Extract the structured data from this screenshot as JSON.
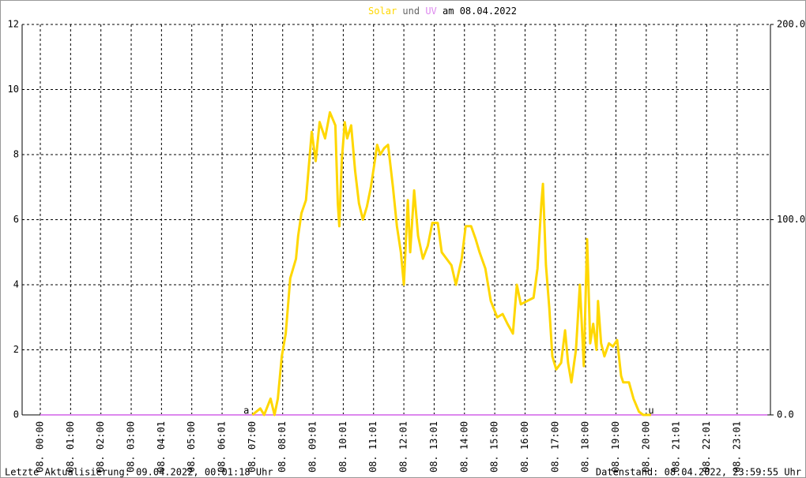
{
  "chart_data": {
    "type": "line",
    "title_connector": "und",
    "title_suffix": "am 08.04.2022",
    "xlim": [
      -0.6,
      24.1
    ],
    "xticks": [
      {
        "value": 0,
        "label": "08. 00:00"
      },
      {
        "value": 1,
        "label": "08. 01:00"
      },
      {
        "value": 2,
        "label": "08. 02:00"
      },
      {
        "value": 3,
        "label": "08. 03:00"
      },
      {
        "value": 4,
        "label": "08. 04:01"
      },
      {
        "value": 5,
        "label": "08. 05:00"
      },
      {
        "value": 6,
        "label": "08. 06:01"
      },
      {
        "value": 7,
        "label": "08. 07:00"
      },
      {
        "value": 8,
        "label": "08. 08:01"
      },
      {
        "value": 9,
        "label": "08. 09:01"
      },
      {
        "value": 10,
        "label": "08. 10:01"
      },
      {
        "value": 11,
        "label": "08. 11:01"
      },
      {
        "value": 12,
        "label": "08. 12:01"
      },
      {
        "value": 13,
        "label": "08. 13:01"
      },
      {
        "value": 14,
        "label": "08. 14:00"
      },
      {
        "value": 15,
        "label": "08. 15:00"
      },
      {
        "value": 16,
        "label": "08. 16:00"
      },
      {
        "value": 17,
        "label": "08. 17:00"
      },
      {
        "value": 18,
        "label": "08. 18:00"
      },
      {
        "value": 19,
        "label": "08. 19:00"
      },
      {
        "value": 20,
        "label": "08. 20:00"
      },
      {
        "value": 21,
        "label": "08. 21:01"
      },
      {
        "value": 22,
        "label": "08. 22:01"
      },
      {
        "value": 23,
        "label": "08. 23:01"
      }
    ],
    "ylim": [
      0,
      12
    ],
    "yticks": [
      0,
      2,
      4,
      6,
      8,
      10,
      12
    ],
    "y2lim": [
      0,
      200
    ],
    "y2ticks": [
      {
        "value": 0,
        "label": "0.0"
      },
      {
        "value": 100,
        "label": "100.0"
      },
      {
        "value": 200,
        "label": "200.0"
      }
    ],
    "grid": true,
    "series": [
      {
        "name": "UV",
        "color": "#dd88ee",
        "axis": "y2",
        "x": [
          0,
          24
        ],
        "values": [
          0,
          0
        ]
      },
      {
        "name": "Solar",
        "color": "#ffd700",
        "x": [
          7.0,
          7.26,
          7.39,
          7.6,
          7.73,
          7.84,
          7.97,
          8.1,
          8.25,
          8.44,
          8.51,
          8.62,
          8.77,
          8.96,
          9.09,
          9.22,
          9.4,
          9.56,
          9.74,
          9.82,
          9.87,
          9.95,
          10.05,
          10.13,
          10.26,
          10.39,
          10.52,
          10.65,
          10.78,
          10.91,
          11.04,
          11.12,
          11.22,
          11.35,
          11.48,
          11.64,
          11.77,
          11.9,
          12.0,
          12.13,
          12.21,
          12.34,
          12.47,
          12.63,
          12.79,
          12.94,
          13.12,
          13.25,
          13.41,
          13.57,
          13.72,
          13.91,
          14.04,
          14.22,
          14.37,
          14.5,
          14.69,
          14.87,
          15.08,
          15.26,
          15.42,
          15.6,
          15.73,
          15.86,
          16.07,
          16.28,
          16.41,
          16.54,
          16.59,
          16.69,
          16.8,
          16.9,
          17.03,
          17.19,
          17.32,
          17.42,
          17.53,
          17.68,
          17.81,
          17.94,
          18.05,
          18.15,
          18.25,
          18.36,
          18.41,
          18.51,
          18.62,
          18.77,
          18.9,
          19.04,
          19.17,
          19.24,
          19.43,
          19.58,
          19.76,
          19.9,
          20.16
        ],
        "values": [
          0,
          0.2,
          0,
          0.5,
          0,
          0.5,
          1.8,
          2.5,
          4.2,
          4.8,
          5.5,
          6.2,
          6.6,
          8.7,
          7.8,
          9.0,
          8.5,
          9.3,
          8.9,
          6.5,
          5.8,
          7.8,
          9.0,
          8.5,
          8.9,
          7.5,
          6.5,
          6.0,
          6.4,
          7.0,
          7.8,
          8.3,
          8.0,
          8.2,
          8.3,
          7.0,
          5.8,
          5.0,
          4.0,
          6.6,
          5.0,
          6.9,
          5.5,
          4.8,
          5.2,
          5.9,
          5.9,
          5.0,
          4.8,
          4.6,
          4.0,
          4.8,
          5.8,
          5.8,
          5.4,
          5.0,
          4.5,
          3.5,
          3.0,
          3.1,
          2.8,
          2.5,
          4.0,
          3.4,
          3.5,
          3.6,
          4.5,
          6.5,
          7.1,
          4.6,
          3.3,
          1.8,
          1.4,
          1.6,
          2.6,
          1.6,
          1.0,
          2.0,
          4.0,
          1.5,
          5.4,
          2.2,
          2.8,
          2.0,
          3.5,
          2.2,
          1.8,
          2.2,
          2.1,
          2.3,
          1.2,
          1.0,
          1.0,
          0.5,
          0.1,
          0,
          0
        ]
      }
    ],
    "annotations": [
      {
        "text": "a",
        "x": 6.8
      },
      {
        "text": "u",
        "x": 20.16
      }
    ],
    "footer_left": "Letzte Aktualisierung: 09.04.2022, 00:01:18 Uhr",
    "footer_right": "Datenstand: 08.04.2022, 23:59:55 Uhr"
  }
}
